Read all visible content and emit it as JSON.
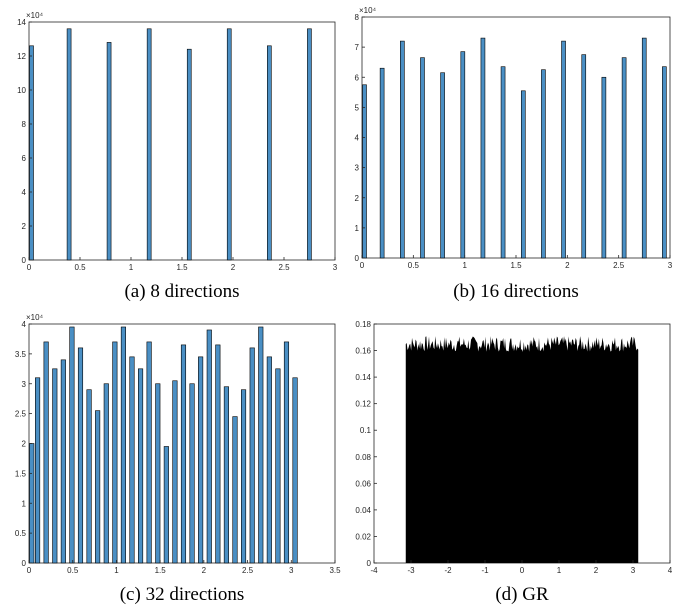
{
  "chart_data": [
    {
      "type": "bar",
      "caption": "(a) 8 directions",
      "multiplier_label": "×10⁴",
      "xlim": [
        0,
        3
      ],
      "ylim": [
        0,
        14
      ],
      "xticks": [
        "0",
        "0.5",
        "1",
        "1.5",
        "2",
        "2.5",
        "3"
      ],
      "yticks": [
        "0",
        "2",
        "4",
        "6",
        "8",
        "10",
        "12",
        "14"
      ],
      "x": [
        0,
        0.393,
        0.785,
        1.178,
        1.571,
        1.963,
        2.356,
        2.749
      ],
      "values": [
        12.6,
        13.6,
        12.8,
        13.6,
        12.4,
        13.6,
        12.6,
        13.6
      ],
      "bar_color": "#4a8fc4",
      "edge_color": "#000000",
      "grid": false
    },
    {
      "type": "bar",
      "caption": "(b) 16 directions",
      "multiplier_label": "×10⁴",
      "xlim": [
        0,
        3
      ],
      "ylim": [
        0,
        8
      ],
      "xticks": [
        "0",
        "0.5",
        "1",
        "1.5",
        "2",
        "2.5",
        "3"
      ],
      "yticks": [
        "0",
        "1",
        "2",
        "3",
        "4",
        "5",
        "6",
        "7",
        "8"
      ],
      "x": [
        0,
        0.196,
        0.393,
        0.589,
        0.785,
        0.982,
        1.178,
        1.374,
        1.571,
        1.767,
        1.963,
        2.16,
        2.356,
        2.553,
        2.749,
        2.945
      ],
      "values": [
        5.75,
        6.3,
        7.2,
        6.65,
        6.15,
        6.85,
        7.3,
        6.35,
        5.55,
        6.25,
        7.2,
        6.75,
        6.0,
        6.65,
        7.3,
        6.35
      ],
      "bar_color": "#4a8fc4",
      "edge_color": "#000000",
      "grid": false
    },
    {
      "type": "bar",
      "caption": "(c) 32 directions",
      "multiplier_label": "×10⁴",
      "xlim": [
        0,
        3.5
      ],
      "ylim": [
        0,
        4
      ],
      "xticks": [
        "0",
        "0.5",
        "1",
        "1.5",
        "2",
        "2.5",
        "3",
        "3.5"
      ],
      "yticks": [
        "0",
        "0.5",
        "1",
        "1.5",
        "2",
        "2.5",
        "3",
        "3.5",
        "4"
      ],
      "x": [
        0,
        0.098,
        0.196,
        0.295,
        0.393,
        0.491,
        0.589,
        0.687,
        0.785,
        0.884,
        0.982,
        1.08,
        1.178,
        1.276,
        1.374,
        1.473,
        1.571,
        1.669,
        1.767,
        1.865,
        1.963,
        2.062,
        2.16,
        2.258,
        2.356,
        2.454,
        2.553,
        2.651,
        2.749,
        2.847,
        2.945,
        3.043
      ],
      "values": [
        2.0,
        3.1,
        3.7,
        3.25,
        3.4,
        3.95,
        3.6,
        2.9,
        2.55,
        3.0,
        3.7,
        3.95,
        3.45,
        3.25,
        3.7,
        3.0,
        1.95,
        3.05,
        3.65,
        3.0,
        3.45,
        3.9,
        3.65,
        2.95,
        2.45,
        2.9,
        3.6,
        3.95,
        3.45,
        3.25,
        3.7,
        3.1
      ],
      "bar_color": "#4a8fc4",
      "edge_color": "#000000",
      "grid": false
    },
    {
      "type": "bar",
      "subtype": "dense_histogram",
      "caption": "(d) GR",
      "xlim": [
        -4,
        4
      ],
      "ylim": [
        0,
        0.18
      ],
      "xticks": [
        "-4",
        "-3",
        "-2",
        "-1",
        "0",
        "1",
        "2",
        "3",
        "4"
      ],
      "yticks": [
        "0",
        "0.02",
        "0.04",
        "0.06",
        "0.08",
        "0.1",
        "0.12",
        "0.14",
        "0.16",
        "0.18"
      ],
      "range": [
        -3.1416,
        3.1416
      ],
      "level_mean": 0.1645,
      "level_min": 0.159,
      "level_max": 0.171,
      "bar_color": "#000000",
      "grid": false
    }
  ]
}
